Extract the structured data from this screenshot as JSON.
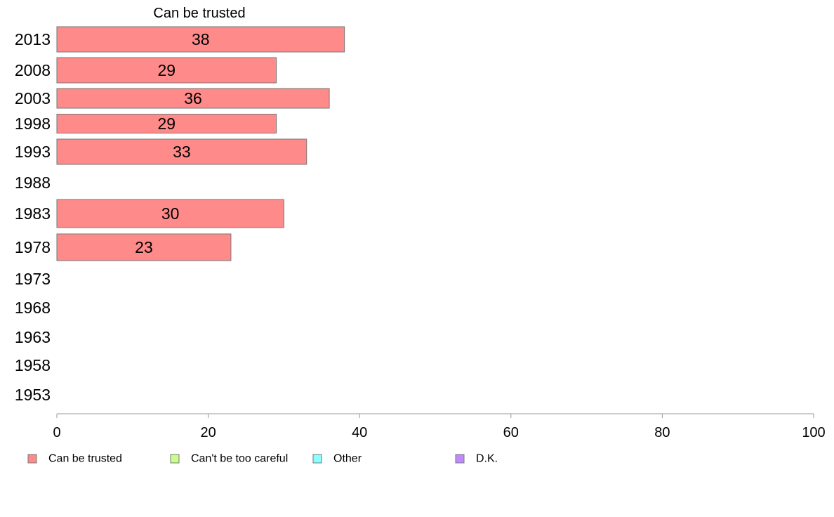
{
  "chart_data": {
    "type": "bar",
    "orientation": "horizontal",
    "title": "Can be trusted",
    "categories": [
      "2013",
      "2008",
      "2003",
      "1998",
      "1993",
      "1988",
      "1983",
      "1978",
      "1973",
      "1968",
      "1963",
      "1958",
      "1953"
    ],
    "series": [
      {
        "name": "Can be trusted",
        "values": [
          38,
          29,
          36,
          29,
          33,
          null,
          30,
          23,
          null,
          null,
          null,
          null,
          null
        ]
      }
    ],
    "xlim": [
      0,
      100
    ],
    "xticks": [
      0,
      20,
      40,
      60,
      80,
      100
    ],
    "legend": {
      "placement": "bottom",
      "entries": [
        {
          "label": "Can be trusted",
          "color": "#ff8a8a"
        },
        {
          "label": "Can't be too careful",
          "color": "#c8ff8a"
        },
        {
          "label": "Other",
          "color": "#8affff"
        },
        {
          "label": "D.K.",
          "color": "#c08aff"
        }
      ]
    },
    "grid": false
  }
}
